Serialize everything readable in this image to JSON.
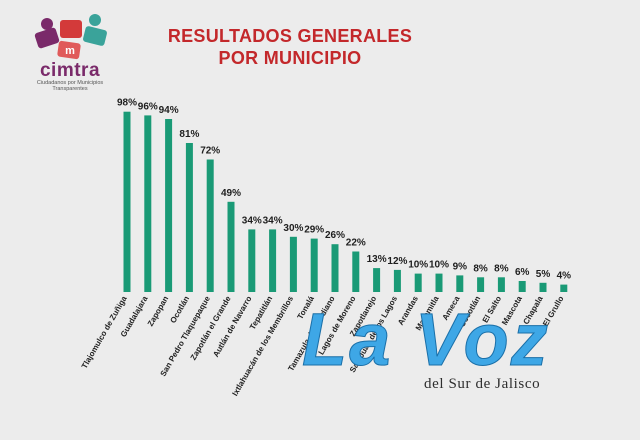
{
  "logo": {
    "word": "cimtra",
    "tagline": "Ciudadanos por Municipios Transparentes"
  },
  "header": {
    "title_line1": "RESULTADOS GENERALES",
    "title_line2": "POR MUNICIPIO"
  },
  "watermark": {
    "main": "La Voz",
    "sub": "del Sur de Jalisco"
  },
  "colors": {
    "bar": "#1a9a76",
    "title": "#c3282b",
    "corner": "#3aa39a",
    "corner_red": "#d6503f"
  },
  "chart_data": {
    "type": "bar",
    "title": "RESULTADOS GENERALES POR MUNICIPIO",
    "categories": [
      "Tlajomulco de Zuñiga",
      "Guadalajara",
      "Zapopan",
      "Ocotlán",
      "San Pedro Tlaquepaque",
      "Zapotlán el Grande",
      "Autlán de Navarro",
      "Tepatitlán",
      "Ixtlahuacán de los Membrillos",
      "Tonalá",
      "Tamazula de Gordiano",
      "Lagos de Moreno",
      "Zapotlanejo",
      "San Juan de los Lagos",
      "Arandas",
      "Mazamitla",
      "Ameca",
      "Cocotlán",
      "El Salto",
      "Mascota",
      "Chapala",
      "El Grullo"
    ],
    "values": [
      98,
      96,
      94,
      81,
      72,
      49,
      34,
      34,
      30,
      29,
      26,
      22,
      13,
      12,
      10,
      10,
      9,
      8,
      8,
      6,
      5,
      4
    ],
    "labels": [
      "98%",
      "96%",
      "94%",
      "81%",
      "72%",
      "49%",
      "34%",
      "34%",
      "30%",
      "29%",
      "26%",
      "22%",
      "13%",
      "12%",
      "10%",
      "10%",
      "9%",
      "8%",
      "8%",
      "6%",
      "5%",
      "4%"
    ],
    "ylim": [
      0,
      100
    ],
    "grid": false,
    "xlabel": "",
    "ylabel": ""
  }
}
